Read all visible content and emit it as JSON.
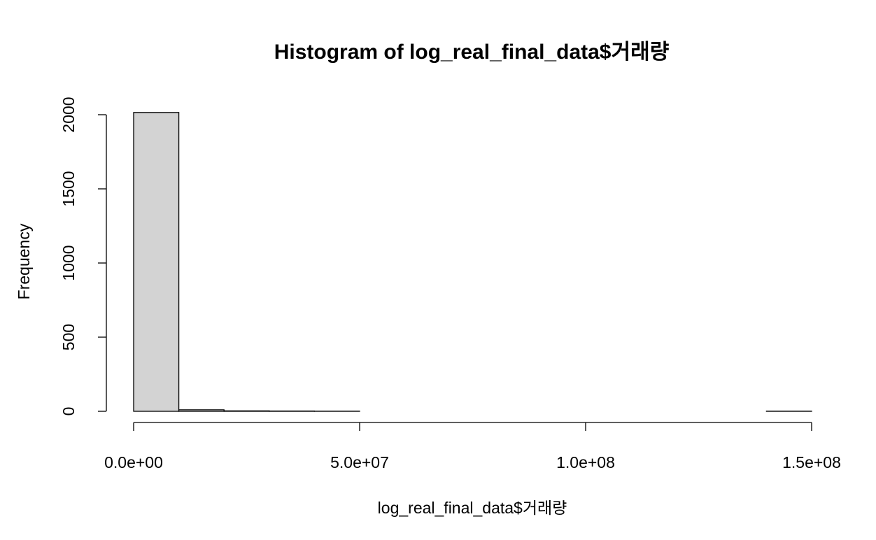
{
  "chart_data": {
    "type": "bar",
    "title": "Histogram of log_real_final_data$거래량",
    "xlabel": "log_real_final_data$거래량",
    "ylabel": "Frequency",
    "xlim": [
      0,
      150000000
    ],
    "ylim": [
      0,
      2000
    ],
    "x_ticks": [
      {
        "value": 0,
        "label": "0.0e+00"
      },
      {
        "value": 50000000,
        "label": "5.0e+07"
      },
      {
        "value": 100000000,
        "label": "1.0e+08"
      },
      {
        "value": 150000000,
        "label": "1.5e+08"
      }
    ],
    "y_ticks": [
      {
        "value": 0,
        "label": "0"
      },
      {
        "value": 500,
        "label": "500"
      },
      {
        "value": 1000,
        "label": "1000"
      },
      {
        "value": 1500,
        "label": "1500"
      },
      {
        "value": 2000,
        "label": "2000"
      }
    ],
    "bin_width": 10000000,
    "bins": [
      {
        "start": 0,
        "end": 10000000,
        "count": 2015
      },
      {
        "start": 10000000,
        "end": 20000000,
        "count": 10
      },
      {
        "start": 20000000,
        "end": 30000000,
        "count": 3
      },
      {
        "start": 30000000,
        "end": 40000000,
        "count": 2
      },
      {
        "start": 40000000,
        "end": 50000000,
        "count": 1
      },
      {
        "start": 50000000,
        "end": 60000000,
        "count": 0
      },
      {
        "start": 60000000,
        "end": 70000000,
        "count": 0
      },
      {
        "start": 70000000,
        "end": 80000000,
        "count": 0
      },
      {
        "start": 80000000,
        "end": 90000000,
        "count": 0
      },
      {
        "start": 90000000,
        "end": 100000000,
        "count": 0
      },
      {
        "start": 100000000,
        "end": 110000000,
        "count": 0
      },
      {
        "start": 110000000,
        "end": 120000000,
        "count": 0
      },
      {
        "start": 120000000,
        "end": 130000000,
        "count": 0
      },
      {
        "start": 130000000,
        "end": 140000000,
        "count": 0
      },
      {
        "start": 140000000,
        "end": 150000000,
        "count": 1
      }
    ],
    "bar_fill": "#d3d3d3",
    "bar_stroke": "#000000",
    "grid": false,
    "legend": "none"
  }
}
